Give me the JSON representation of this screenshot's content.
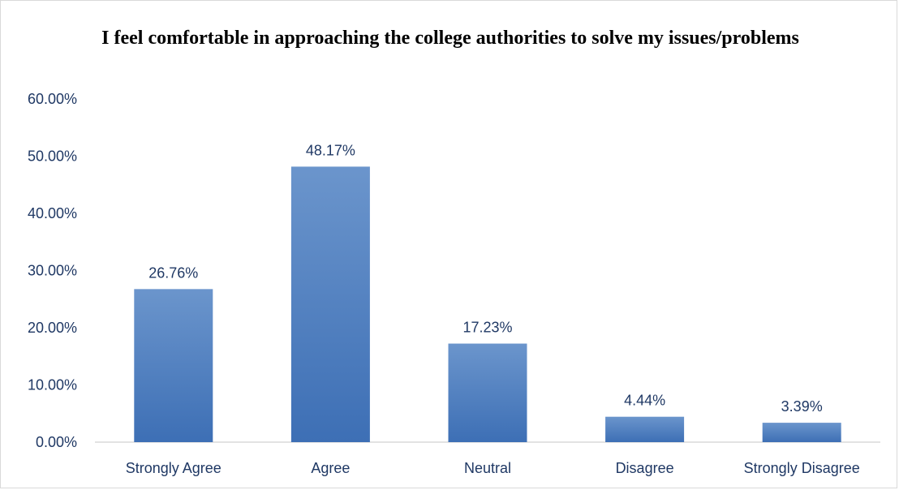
{
  "chart_data": {
    "type": "bar",
    "title": "I feel comfortable in approaching the college authorities to solve my issues/problems",
    "categories": [
      "Strongly Agree",
      "Agree",
      "Neutral",
      "Disagree",
      "Strongly Disagree"
    ],
    "values": [
      26.76,
      48.17,
      17.23,
      4.44,
      3.39
    ],
    "data_labels": [
      "26.76%",
      "48.17%",
      "17.23%",
      "4.44%",
      "3.39%"
    ],
    "ylim": [
      0,
      60
    ],
    "yticks": [
      0,
      10,
      20,
      30,
      40,
      50,
      60
    ],
    "ytick_labels": [
      "0.00%",
      "10.00%",
      "20.00%",
      "30.00%",
      "40.00%",
      "50.00%",
      "60.00%"
    ],
    "grid": false,
    "legend": "none",
    "bar_color_top": "#6b95cc",
    "bar_color_bottom": "#3d6fb5",
    "axis_color": "#d9d9d9",
    "text_color": "#1f3864"
  }
}
